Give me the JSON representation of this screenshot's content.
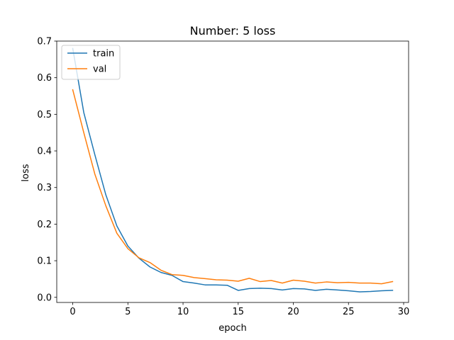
{
  "chart_data": {
    "type": "line",
    "title": "Number: 5 loss",
    "xlabel": "epoch",
    "ylabel": "loss",
    "xlim": [
      -1.45,
      30.45
    ],
    "ylim": [
      -0.014,
      0.7
    ],
    "xticks": [
      0,
      5,
      10,
      15,
      20,
      25,
      30
    ],
    "yticks": [
      0.0,
      0.1,
      0.2,
      0.3,
      0.4,
      0.5,
      0.6,
      0.7
    ],
    "ytick_labels": [
      "0.0",
      "0.1",
      "0.2",
      "0.3",
      "0.4",
      "0.5",
      "0.6",
      "0.7"
    ],
    "grid": false,
    "legend_position": "upper-left",
    "x": [
      0,
      1,
      2,
      3,
      4,
      5,
      6,
      7,
      8,
      9,
      10,
      11,
      12,
      13,
      14,
      15,
      16,
      17,
      18,
      19,
      20,
      21,
      22,
      23,
      24,
      25,
      26,
      27,
      28,
      29
    ],
    "series": [
      {
        "name": "train",
        "color": "#1f77b4",
        "values": [
          0.68,
          0.505,
          0.39,
          0.28,
          0.195,
          0.14,
          0.107,
          0.083,
          0.068,
          0.06,
          0.043,
          0.039,
          0.034,
          0.034,
          0.033,
          0.019,
          0.024,
          0.025,
          0.024,
          0.02,
          0.024,
          0.023,
          0.019,
          0.022,
          0.02,
          0.018,
          0.015,
          0.016,
          0.018,
          0.019
        ]
      },
      {
        "name": "val",
        "color": "#ff7f0e",
        "values": [
          0.567,
          0.45,
          0.337,
          0.25,
          0.175,
          0.133,
          0.108,
          0.095,
          0.074,
          0.062,
          0.06,
          0.054,
          0.051,
          0.048,
          0.047,
          0.044,
          0.052,
          0.043,
          0.046,
          0.039,
          0.047,
          0.044,
          0.039,
          0.042,
          0.04,
          0.041,
          0.039,
          0.039,
          0.037,
          0.043
        ]
      }
    ]
  }
}
